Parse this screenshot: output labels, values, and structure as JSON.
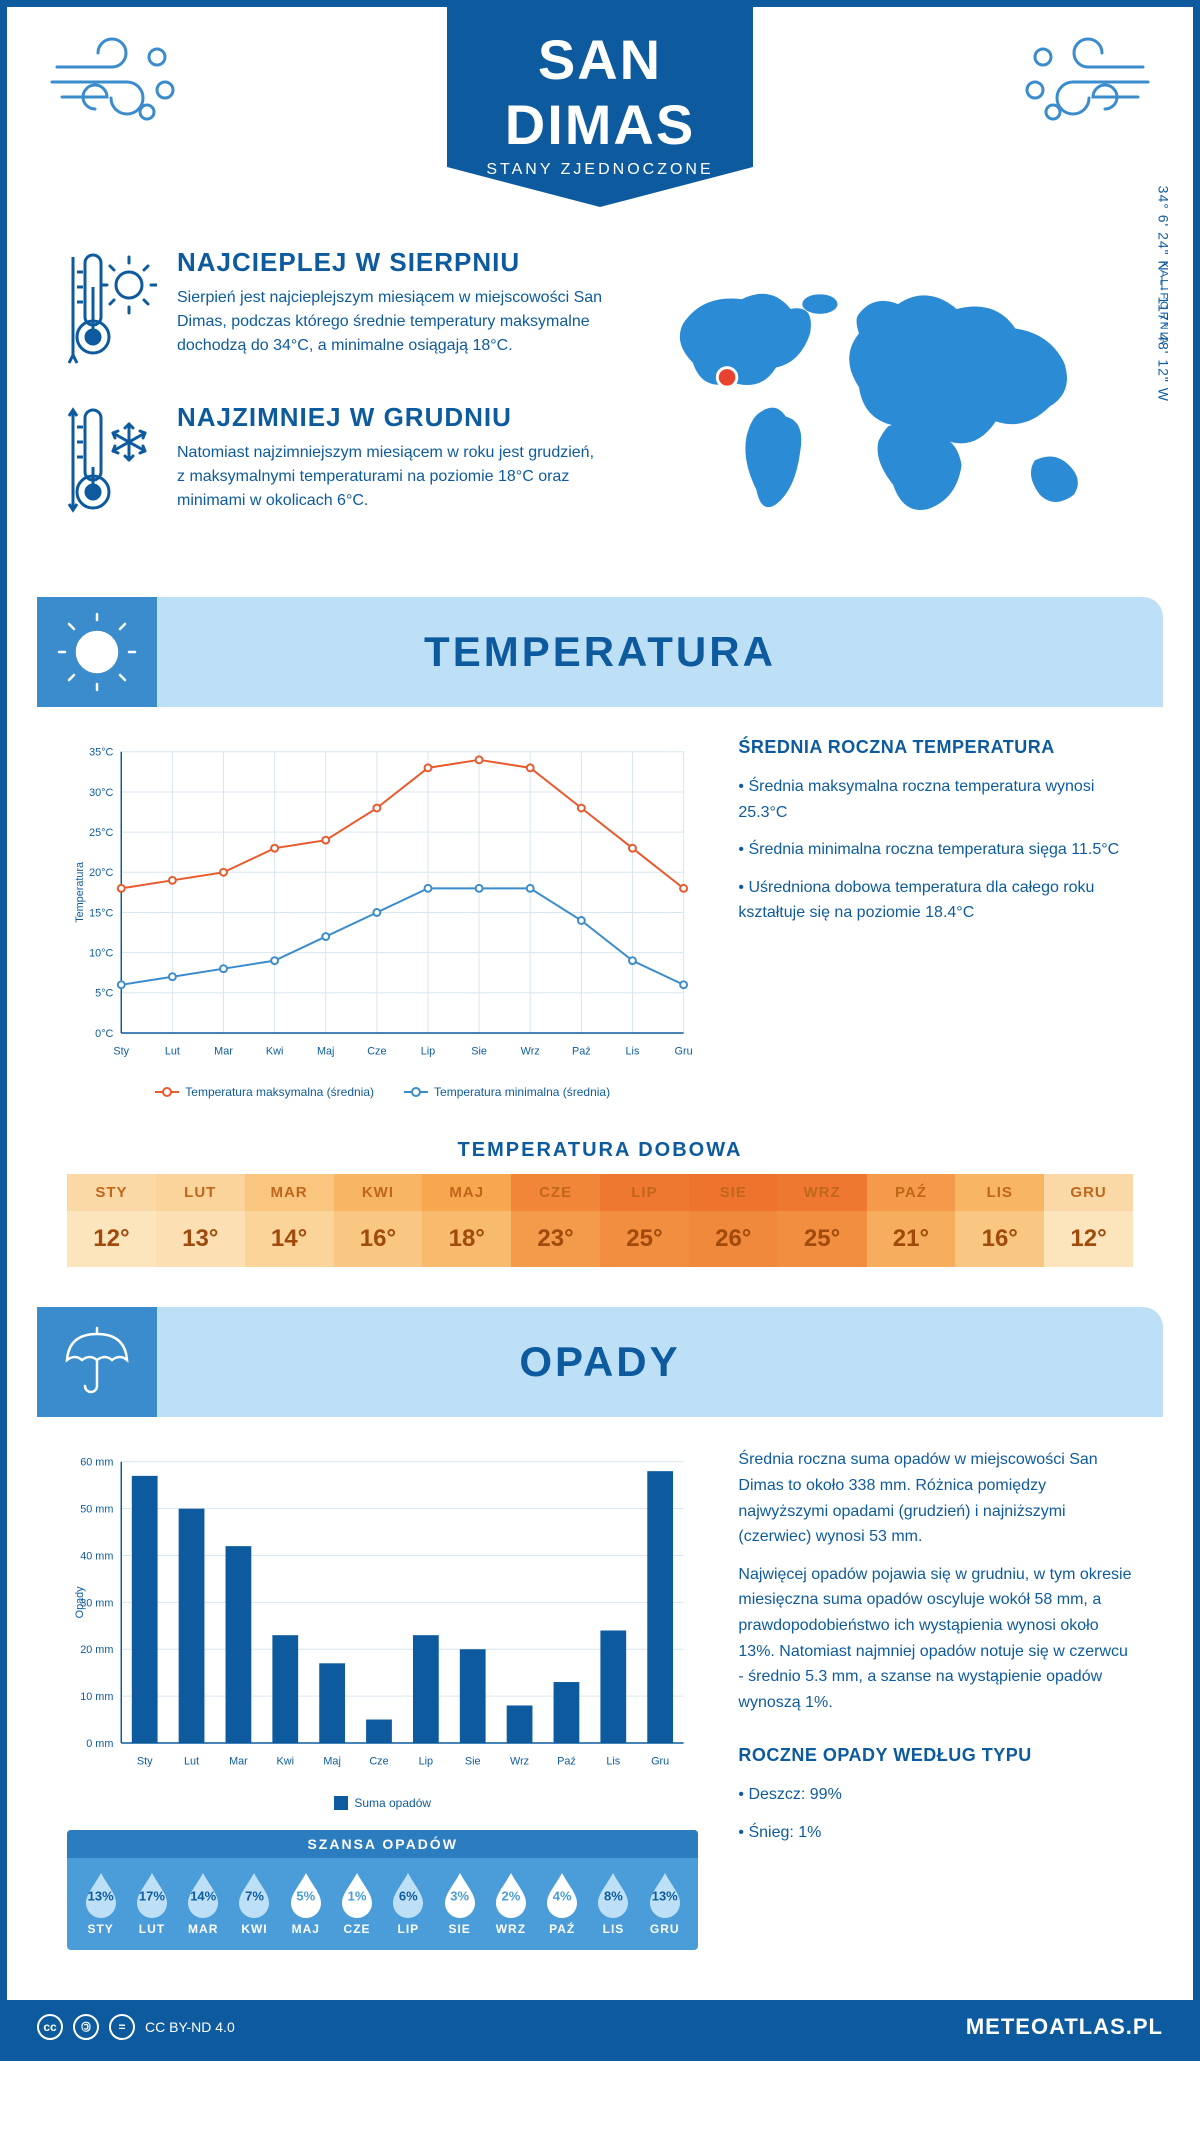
{
  "header": {
    "title": "SAN DIMAS",
    "subtitle": "STANY ZJEDNOCZONE"
  },
  "location": {
    "coords": "34° 6' 24\" N — 117° 48' 12\" W",
    "region": "KALIFORNIA",
    "marker_color": "#e8432e"
  },
  "facts": {
    "hot": {
      "title": "NAJCIEPLEJ W SIERPNIU",
      "text": "Sierpień jest najcieplejszym miesiącem w miejscowości San Dimas, podczas którego średnie temperatury maksymalne dochodzą do 34°C, a minimalne osiągają 18°C."
    },
    "cold": {
      "title": "NAJZIMNIEJ W GRUDNIU",
      "text": "Natomiast najzimniejszym miesiącem w roku jest grudzień, z maksymalnymi temperaturami na poziomie 18°C oraz minimami w okolicach 6°C."
    }
  },
  "months_short": [
    "Sty",
    "Lut",
    "Mar",
    "Kwi",
    "Maj",
    "Cze",
    "Lip",
    "Sie",
    "Wrz",
    "Paź",
    "Lis",
    "Gru"
  ],
  "months_upper": [
    "STY",
    "LUT",
    "MAR",
    "KWI",
    "MAJ",
    "CZE",
    "LIP",
    "SIE",
    "WRZ",
    "PAŹ",
    "LIS",
    "GRU"
  ],
  "temperature": {
    "section_title": "TEMPERATURA",
    "chart": {
      "ylabel": "Temperatura",
      "ymin": 0,
      "ymax": 35,
      "ystep": 5,
      "y_suffix": "°C",
      "max_series": {
        "label": "Temperatura maksymalna (średnia)",
        "color": "#e8592b",
        "values": [
          18,
          19,
          20,
          23,
          24,
          28,
          33,
          34,
          33,
          28,
          23,
          18
        ]
      },
      "min_series": {
        "label": "Temperatura minimalna (średnia)",
        "color": "#3b8ccc",
        "values": [
          6,
          7,
          8,
          9,
          12,
          15,
          18,
          18,
          18,
          14,
          9,
          6
        ]
      },
      "grid_color": "#d8e6ef",
      "axis_fontsize": 11,
      "line_width": 2,
      "marker_radius": 3.5
    },
    "summary": {
      "title": "ŚREDNIA ROCZNA TEMPERATURA",
      "bullets": [
        "Średnia maksymalna roczna temperatura wynosi 25.3°C",
        "Średnia minimalna roczna temperatura sięga 11.5°C",
        "Uśredniona dobowa temperatura dla całego roku kształtuje się na poziomie 18.4°C"
      ]
    },
    "daily": {
      "title": "TEMPERATURA DOBOWA",
      "values": [
        12,
        13,
        14,
        16,
        18,
        23,
        25,
        26,
        25,
        21,
        16,
        12
      ],
      "unit": "°",
      "header_bg_colors": [
        "#fbd9a7",
        "#fbd49c",
        "#fac57f",
        "#f8b564",
        "#f7a74e",
        "#f18638",
        "#ef7830",
        "#ee742e",
        "#ef7830",
        "#f5994a",
        "#f8b564",
        "#fbd9a7"
      ],
      "value_bg_colors": [
        "#fce5bd",
        "#fce0b3",
        "#fad499",
        "#f9c781",
        "#f8bb6d",
        "#f39b4b",
        "#f18e40",
        "#f0893c",
        "#f18e40",
        "#f6ae5e",
        "#f9c781",
        "#fce5bd"
      ]
    }
  },
  "precipitation": {
    "section_title": "OPADY",
    "chart": {
      "ylabel": "Opady",
      "ymin": 0,
      "ymax": 60,
      "ystep": 10,
      "y_suffix": " mm",
      "values": [
        57,
        50,
        42,
        23,
        17,
        5,
        23,
        20,
        8,
        13,
        24,
        58
      ],
      "bar_color": "#0d5b9e",
      "grid_color": "#d8e6ef",
      "legend_label": "Suma opadów"
    },
    "summary_paras": [
      "Średnia roczna suma opadów w miejscowości San Dimas to około 338 mm. Różnica pomiędzy najwyższymi opadami (grudzień) i najniższymi (czerwiec) wynosi 53 mm.",
      "Najwięcej opadów pojawia się w grudniu, w tym okresie miesięczna suma opadów oscyluje wokół 58 mm, a prawdopodobieństwo ich wystąpienia wynosi około 13%. Natomiast najmniej opadów notuje się w czerwcu - średnio 5.3 mm, a szanse na wystąpienie opadów wynoszą 1%."
    ],
    "chance": {
      "title": "SZANSA OPADÓW",
      "values": [
        13,
        17,
        14,
        7,
        5,
        1,
        6,
        3,
        2,
        4,
        8,
        13
      ],
      "filled_threshold": 6,
      "drop_fill": "#ffffff",
      "drop_filled_fill": "#bee0f7",
      "band_bg": "#4a9dd8",
      "title_bg": "#2b7dbf"
    },
    "by_type": {
      "title": "ROCZNE OPADY WEDŁUG TYPU",
      "items": [
        "Deszcz: 99%",
        "Śnieg: 1%"
      ]
    }
  },
  "footer": {
    "license": "CC BY-ND 4.0",
    "site": "METEOATLAS.PL"
  },
  "colors": {
    "primary": "#0d5b9e",
    "band_bg": "#bee0f7",
    "tab_bg": "#3b8ccc"
  }
}
